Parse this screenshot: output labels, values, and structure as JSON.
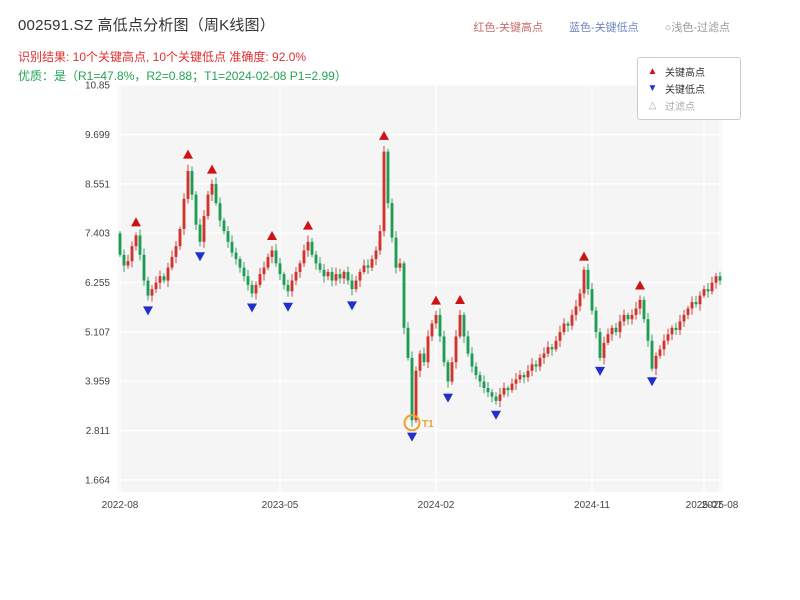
{
  "header": {
    "title": "002591.SZ 高低点分析图（周K线图）",
    "legend_inline": {
      "high": "红色-关键高点",
      "low": "蓝色-关键低点",
      "filtered": "○浅色-过滤点"
    },
    "result_line": "识别结果: 10个关键高点, 10个关键低点  准确度: 92.0%",
    "quality_line": "优质：是（R1=47.8%，R2=0.88；T1=2024-02-08 P1=2.99）"
  },
  "colors": {
    "title": "#333333",
    "legend_high": "#c56c6c",
    "legend_low": "#6f86c2",
    "legend_filtered": "#9a9a9a",
    "result_text": "#e03131",
    "quality_text": "#23a455"
  },
  "legend_box": {
    "items": [
      {
        "symbol": "▲",
        "label": "关键高点",
        "color": "#cc1414"
      },
      {
        "symbol": "▼",
        "label": "关键低点",
        "color": "#2030c8"
      },
      {
        "symbol": "△",
        "label": "过滤点",
        "color": "#aaaaaa"
      }
    ]
  },
  "chart_data": {
    "type": "candlestick",
    "title": "002591.SZ 高低点分析图（周K线图）",
    "frequency": "weekly",
    "grid": true,
    "legend_position": "top-right",
    "ylim": [
      1.38,
      10.85
    ],
    "up_color": "#d0342c",
    "down_color": "#1f9d55",
    "high_marker_color": "#cc1414",
    "low_marker_color": "#2030c8",
    "t1_color": "#f0a030",
    "plot_bg": "#f5f5f6",
    "closes": [
      6.9,
      6.65,
      6.75,
      7.1,
      7.35,
      6.9,
      6.3,
      5.95,
      6.1,
      6.25,
      6.4,
      6.3,
      6.6,
      6.85,
      7.1,
      7.5,
      8.2,
      8.85,
      8.3,
      7.6,
      7.2,
      7.8,
      8.3,
      8.55,
      8.1,
      7.7,
      7.45,
      7.2,
      6.95,
      6.8,
      6.6,
      6.4,
      6.2,
      6.0,
      6.2,
      6.45,
      6.6,
      6.85,
      7.0,
      6.7,
      6.45,
      6.2,
      6.05,
      6.3,
      6.5,
      6.7,
      7.0,
      7.2,
      6.9,
      6.7,
      6.55,
      6.4,
      6.5,
      6.3,
      6.45,
      6.35,
      6.5,
      6.3,
      6.1,
      6.3,
      6.5,
      6.65,
      6.6,
      6.8,
      7.0,
      7.45,
      9.3,
      8.1,
      7.3,
      6.6,
      6.7,
      5.2,
      4.5,
      3.05,
      4.2,
      4.6,
      4.4,
      5.0,
      5.3,
      5.5,
      5.0,
      4.4,
      3.95,
      4.4,
      5.0,
      5.5,
      5.0,
      4.6,
      4.3,
      4.1,
      3.95,
      3.8,
      3.7,
      3.6,
      3.5,
      3.65,
      3.8,
      3.75,
      3.9,
      4.0,
      4.1,
      4.05,
      4.2,
      4.35,
      4.3,
      4.5,
      4.6,
      4.75,
      4.7,
      4.9,
      5.1,
      5.3,
      5.25,
      5.5,
      5.7,
      6.0,
      6.55,
      6.1,
      5.6,
      5.1,
      4.5,
      4.85,
      5.05,
      5.2,
      5.1,
      5.35,
      5.5,
      5.4,
      5.5,
      5.65,
      5.85,
      5.4,
      4.9,
      4.25,
      4.55,
      4.7,
      4.9,
      5.05,
      5.2,
      5.15,
      5.35,
      5.5,
      5.65,
      5.8,
      5.75,
      5.95,
      6.1,
      6.05,
      6.25,
      6.4,
      6.3
    ],
    "key_high_indices": [
      4,
      17,
      23,
      38,
      47,
      66,
      79,
      85,
      116,
      130
    ],
    "key_low_indices": [
      7,
      20,
      33,
      42,
      58,
      73,
      82,
      94,
      120,
      133
    ],
    "filtered_indices": [],
    "t1": {
      "index": 73,
      "price": 2.99,
      "label": "T1"
    },
    "y_ticks": [
      {
        "label": "10.85",
        "value": 10.85
      },
      {
        "label": "9.699",
        "value": 9.699
      },
      {
        "label": "8.551",
        "value": 8.551
      },
      {
        "label": "7.403",
        "value": 7.403
      },
      {
        "label": "6.255",
        "value": 6.255
      },
      {
        "label": "5.107",
        "value": 5.107
      },
      {
        "label": "3.959",
        "value": 3.959
      },
      {
        "label": "2.811",
        "value": 2.811
      },
      {
        "label": "1.664",
        "value": 1.664
      }
    ],
    "x_ticks": [
      {
        "label": "2022-08",
        "index": 0
      },
      {
        "label": "2023-05",
        "index": 40
      },
      {
        "label": "2024-02",
        "index": 79
      },
      {
        "label": "2024-11",
        "index": 118
      },
      {
        "label": "2025-07",
        "index": 146
      },
      {
        "label": "2025-08",
        "index": 150
      }
    ]
  }
}
